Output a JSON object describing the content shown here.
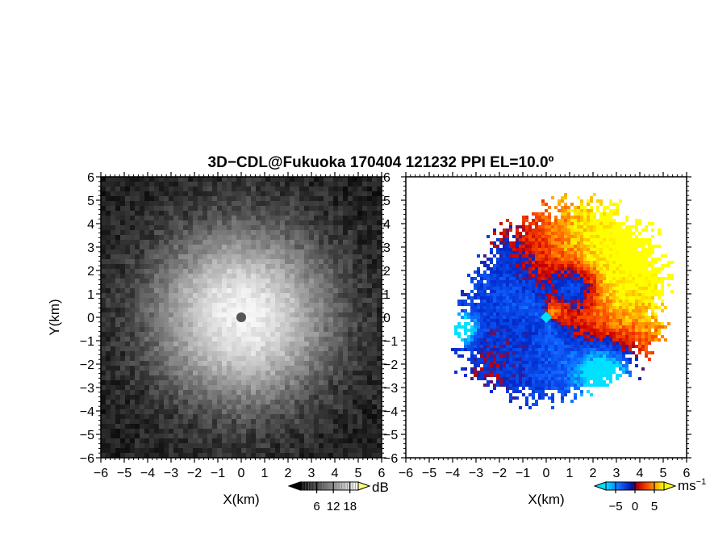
{
  "title": "3D−CDL@Fukuoka 170404 121232 PPI EL=10.0º",
  "chart_data": [
    {
      "type": "heatmap",
      "panel": "left",
      "field": "reflectivity",
      "xlabel": "X(km)",
      "ylabel": "Y(km)",
      "xlim": [
        -6,
        6
      ],
      "ylim": [
        -6,
        6
      ],
      "xticks": [
        "−6",
        "−5",
        "−4",
        "−3",
        "−2",
        "−1",
        "0",
        "1",
        "2",
        "3",
        "4",
        "5",
        "6"
      ],
      "yticks": [
        "6",
        "5",
        "4",
        "3",
        "2",
        "1",
        "0",
        "−1",
        "−2",
        "−3",
        "−4",
        "−5",
        "−6"
      ],
      "colormap": "grayscale",
      "colorbar": {
        "label": "dB",
        "ticks": [
          "6",
          "12",
          "18"
        ],
        "range": [
          0,
          21
        ]
      }
    },
    {
      "type": "heatmap",
      "panel": "right",
      "field": "radial velocity",
      "xlabel": "X(km)",
      "xlim": [
        -6,
        6
      ],
      "ylim": [
        -6,
        6
      ],
      "xticks": [
        "−6",
        "−5",
        "−4",
        "−3",
        "−2",
        "−1",
        "0",
        "1",
        "2",
        "3",
        "4",
        "5",
        "6"
      ],
      "yticks": [
        "6",
        "5",
        "4",
        "3",
        "2",
        "1",
        "0",
        "−1",
        "−2",
        "−3",
        "−4",
        "−5",
        "−6"
      ],
      "colormap": "diverging blue-red-yellow",
      "colorbar": {
        "label": "ms",
        "label_exponent": "−1",
        "ticks": [
          "−5",
          "0",
          "5"
        ],
        "range": [
          -7.5,
          7.5
        ]
      }
    }
  ]
}
